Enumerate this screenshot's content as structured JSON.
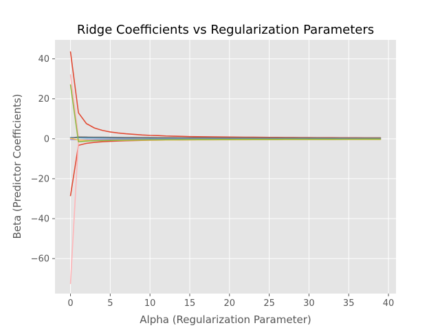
{
  "chart_data": {
    "type": "line",
    "title": "Ridge Coefficients vs Regularization Parameters",
    "xlabel": "Alpha (Regularization Parameter)",
    "ylabel": "Beta (Predictor Coefficients)",
    "xlim": [
      -1.95,
      40.95
    ],
    "ylim": [
      -77.5,
      49.5
    ],
    "xticks": [
      0,
      5,
      10,
      15,
      20,
      25,
      30,
      35,
      40
    ],
    "yticks": [
      -60,
      -40,
      -20,
      0,
      20,
      40
    ],
    "grid": true,
    "background": "#e5e5e5",
    "x": [
      0,
      1,
      2,
      3,
      4,
      5,
      6,
      7,
      8,
      9,
      10,
      11,
      12,
      13,
      14,
      15,
      16,
      17,
      18,
      19,
      20,
      21,
      22,
      23,
      24,
      25,
      26,
      27,
      28,
      29,
      30,
      31,
      32,
      33,
      34,
      35,
      36,
      37,
      38,
      39
    ],
    "series": [
      {
        "color": "#e24a33",
        "values": [
          43.5,
          13.0,
          7.6,
          5.4,
          4.2,
          3.4,
          2.9,
          2.5,
          2.2,
          1.9,
          1.7,
          1.6,
          1.4,
          1.3,
          1.2,
          1.1,
          1.05,
          1.0,
          0.95,
          0.9,
          0.86,
          0.82,
          0.79,
          0.76,
          0.73,
          0.7,
          0.68,
          0.66,
          0.64,
          0.62,
          0.6,
          0.58,
          0.57,
          0.55,
          0.54,
          0.52,
          0.51,
          0.5,
          0.49,
          0.48
        ]
      },
      {
        "color": "#e24a33",
        "values": [
          -28.5,
          -3.3,
          -2.3,
          -1.8,
          -1.5,
          -1.3,
          -1.1,
          -1.0,
          -0.9,
          -0.82,
          -0.75,
          -0.69,
          -0.64,
          -0.6,
          -0.56,
          -0.52,
          -0.49,
          -0.46,
          -0.44,
          -0.42,
          -0.4,
          -0.38,
          -0.36,
          -0.35,
          -0.33,
          -0.32,
          -0.31,
          -0.3,
          -0.29,
          -0.28,
          -0.27,
          -0.26,
          -0.25,
          -0.25,
          -0.24,
          -0.23,
          -0.23,
          -0.22,
          -0.22,
          -0.21
        ]
      },
      {
        "color": "#ffb5b8",
        "values": [
          32.0,
          0.9,
          0.6,
          0.45,
          0.38,
          0.32,
          0.28,
          0.25,
          0.22,
          0.2,
          0.18,
          0.17,
          0.16,
          0.15,
          0.14,
          0.13,
          0.12,
          0.12,
          0.11,
          0.11,
          0.1,
          0.1,
          0.09,
          0.09,
          0.09,
          0.08,
          0.08,
          0.08,
          0.08,
          0.07,
          0.07,
          0.07,
          0.07,
          0.07,
          0.06,
          0.06,
          0.06,
          0.06,
          0.06,
          0.06
        ]
      },
      {
        "color": "#ffb5b8",
        "values": [
          -72.5,
          -0.9,
          -0.6,
          -0.45,
          -0.38,
          -0.32,
          -0.28,
          -0.25,
          -0.22,
          -0.2,
          -0.18,
          -0.17,
          -0.16,
          -0.15,
          -0.14,
          -0.13,
          -0.12,
          -0.12,
          -0.11,
          -0.11,
          -0.1,
          -0.1,
          -0.09,
          -0.09,
          -0.09,
          -0.08,
          -0.08,
          -0.08,
          -0.08,
          -0.07,
          -0.07,
          -0.07,
          -0.07,
          -0.07,
          -0.06,
          -0.06,
          -0.06,
          -0.06,
          -0.06,
          -0.06
        ]
      },
      {
        "color": "#348abd",
        "values": [
          0.6,
          0.5,
          0.45,
          0.42,
          0.4,
          0.38,
          0.36,
          0.35,
          0.34,
          0.33,
          0.32,
          0.31,
          0.3,
          0.3,
          0.29,
          0.29,
          0.28,
          0.28,
          0.27,
          0.27,
          0.26,
          0.26,
          0.26,
          0.25,
          0.25,
          0.25,
          0.24,
          0.24,
          0.24,
          0.24,
          0.23,
          0.23,
          0.23,
          0.23,
          0.22,
          0.22,
          0.22,
          0.22,
          0.22,
          0.21
        ]
      },
      {
        "color": "#777777",
        "values": [
          0.3,
          0.9,
          0.85,
          0.8,
          0.76,
          0.72,
          0.69,
          0.66,
          0.64,
          0.62,
          0.6,
          0.58,
          0.57,
          0.55,
          0.54,
          0.53,
          0.52,
          0.51,
          0.5,
          0.49,
          0.48,
          0.47,
          0.47,
          0.46,
          0.45,
          0.45,
          0.44,
          0.44,
          0.43,
          0.43,
          0.42,
          0.42,
          0.41,
          0.41,
          0.41,
          0.4,
          0.4,
          0.4,
          0.39,
          0.39
        ]
      },
      {
        "color": "#988ed5",
        "values": [
          -0.4,
          -0.5,
          -0.45,
          -0.42,
          -0.4,
          -0.38,
          -0.36,
          -0.35,
          -0.34,
          -0.33,
          -0.32,
          -0.31,
          -0.3,
          -0.3,
          -0.29,
          -0.29,
          -0.28,
          -0.28,
          -0.27,
          -0.27,
          -0.26,
          -0.26,
          -0.26,
          -0.25,
          -0.25,
          -0.25,
          -0.24,
          -0.24,
          -0.24,
          -0.24,
          -0.23,
          -0.23,
          -0.23,
          -0.23,
          -0.22,
          -0.22,
          -0.22,
          -0.22,
          -0.22,
          -0.21
        ]
      },
      {
        "color": "#fbc15e",
        "values": [
          0.2,
          -0.6,
          -0.8,
          -0.85,
          -0.85,
          -0.83,
          -0.8,
          -0.78,
          -0.75,
          -0.72,
          -0.7,
          -0.67,
          -0.65,
          -0.63,
          -0.61,
          -0.59,
          -0.57,
          -0.56,
          -0.54,
          -0.53,
          -0.52,
          -0.51,
          -0.5,
          -0.49,
          -0.48,
          -0.47,
          -0.46,
          -0.45,
          -0.45,
          -0.44,
          -0.43,
          -0.43,
          -0.42,
          -0.42,
          -0.41,
          -0.41,
          -0.4,
          -0.4,
          -0.39,
          -0.39
        ]
      },
      {
        "color": "#8eba42",
        "values": [
          27.0,
          -1.5,
          -1.2,
          -1.0,
          -0.9,
          -0.8,
          -0.72,
          -0.66,
          -0.61,
          -0.57,
          -0.53,
          -0.5,
          -0.47,
          -0.45,
          -0.43,
          -0.41,
          -0.39,
          -0.37,
          -0.36,
          -0.35,
          -0.33,
          -0.32,
          -0.31,
          -0.3,
          -0.3,
          -0.29,
          -0.28,
          -0.27,
          -0.27,
          -0.26,
          -0.26,
          -0.25,
          -0.25,
          -0.24,
          -0.24,
          -0.23,
          -0.23,
          -0.22,
          -0.22,
          -0.22
        ]
      }
    ]
  }
}
